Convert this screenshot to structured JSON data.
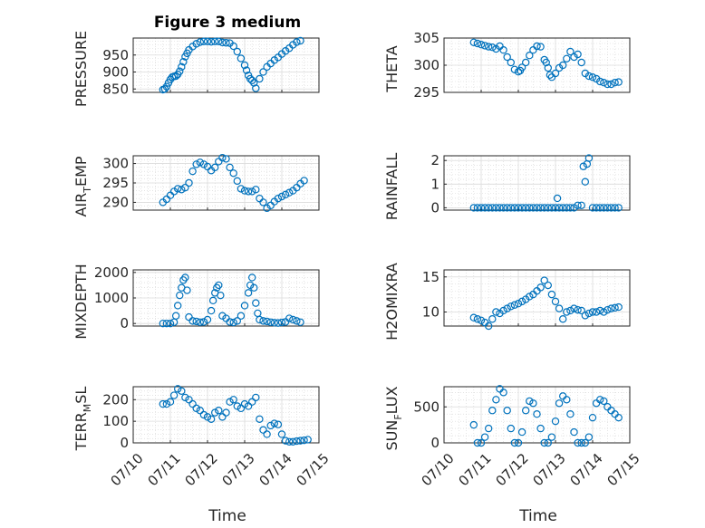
{
  "figure_title": "Figure 3 medium",
  "xlabel": "Time",
  "x_tick_labels": [
    "07/10",
    "07/11",
    "07/12",
    "07/13",
    "07/14",
    "07/15"
  ],
  "marker_color": "#0072BD",
  "chart_data": [
    {
      "type": "scatter",
      "ylabel": "PRESSURE",
      "ylim": [
        840,
        1000
      ],
      "yticks": [
        850,
        900,
        950
      ],
      "x": [
        0.8,
        0.85,
        0.9,
        0.95,
        1.0,
        1.05,
        1.1,
        1.15,
        1.2,
        1.25,
        1.3,
        1.35,
        1.4,
        1.45,
        1.5,
        1.6,
        1.7,
        1.8,
        1.9,
        2.0,
        2.1,
        2.2,
        2.3,
        2.4,
        2.5,
        2.6,
        2.7,
        2.8,
        2.9,
        3.0,
        3.05,
        3.1,
        3.15,
        3.2,
        3.25,
        3.3,
        3.4,
        3.5,
        3.6,
        3.7,
        3.8,
        3.9,
        4.0,
        4.1,
        4.2,
        4.3,
        4.4,
        4.5
      ],
      "y": [
        848,
        850,
        857,
        868,
        878,
        885,
        887,
        888,
        893,
        902,
        915,
        930,
        945,
        955,
        965,
        975,
        983,
        988,
        990,
        990,
        989,
        990,
        990,
        987,
        986,
        985,
        976,
        960,
        940,
        920,
        905,
        890,
        880,
        875,
        868,
        852,
        880,
        900,
        915,
        925,
        935,
        943,
        953,
        962,
        970,
        980,
        988,
        992
      ]
    },
    {
      "type": "scatter",
      "ylabel": "THETA",
      "ylim": [
        295,
        305
      ],
      "yticks": [
        295,
        300,
        305
      ],
      "x": [
        0.8,
        0.9,
        1.0,
        1.1,
        1.2,
        1.3,
        1.4,
        1.5,
        1.6,
        1.7,
        1.8,
        1.9,
        2.0,
        2.05,
        2.1,
        2.2,
        2.3,
        2.4,
        2.5,
        2.6,
        2.7,
        2.75,
        2.8,
        2.85,
        2.9,
        3.0,
        3.1,
        3.2,
        3.3,
        3.4,
        3.5,
        3.6,
        3.7,
        3.8,
        3.9,
        4.0,
        4.1,
        4.2,
        4.3,
        4.4,
        4.5,
        4.6,
        4.7
      ],
      "y": [
        304.2,
        304.0,
        303.8,
        303.6,
        303.4,
        303.3,
        303.0,
        303.5,
        302.8,
        301.5,
        300.5,
        299.2,
        298.8,
        299.0,
        299.6,
        300.5,
        301.8,
        302.8,
        303.5,
        303.4,
        301.0,
        300.5,
        299.5,
        298.2,
        297.8,
        298.5,
        299.5,
        300.0,
        301.2,
        302.5,
        301.5,
        302.0,
        300.5,
        298.5,
        298.0,
        297.8,
        297.5,
        297.0,
        296.8,
        296.5,
        296.5,
        296.8,
        296.9
      ]
    },
    {
      "type": "scatter",
      "ylabel": "AIR_TEMP",
      "ylim": [
        288,
        302
      ],
      "yticks": [
        290,
        295,
        300
      ],
      "x": [
        0.8,
        0.9,
        1.0,
        1.1,
        1.2,
        1.3,
        1.4,
        1.5,
        1.6,
        1.7,
        1.8,
        1.9,
        2.0,
        2.1,
        2.2,
        2.3,
        2.4,
        2.5,
        2.6,
        2.7,
        2.8,
        2.9,
        3.0,
        3.1,
        3.2,
        3.3,
        3.4,
        3.5,
        3.6,
        3.7,
        3.8,
        3.9,
        4.0,
        4.1,
        4.2,
        4.3,
        4.4,
        4.5,
        4.6
      ],
      "y": [
        290.0,
        290.8,
        291.8,
        292.8,
        293.5,
        293.3,
        293.8,
        295.0,
        298.0,
        299.8,
        300.3,
        299.8,
        299.2,
        298.2,
        299.0,
        300.5,
        301.5,
        301.2,
        299.0,
        297.5,
        295.5,
        293.5,
        293.0,
        292.8,
        292.8,
        293.3,
        291.0,
        290.0,
        288.5,
        289.2,
        290.2,
        291.0,
        291.5,
        292.0,
        292.5,
        293.0,
        293.8,
        294.8,
        295.6
      ]
    },
    {
      "type": "scatter",
      "ylabel": "RAINFALL",
      "ylim": [
        -0.1,
        2.2
      ],
      "yticks": [
        0,
        1,
        2
      ],
      "x": [
        0.8,
        0.9,
        1.0,
        1.1,
        1.2,
        1.3,
        1.4,
        1.5,
        1.6,
        1.7,
        1.8,
        1.9,
        2.0,
        2.1,
        2.2,
        2.3,
        2.4,
        2.5,
        2.6,
        2.7,
        2.8,
        2.9,
        3.0,
        3.05,
        3.1,
        3.2,
        3.3,
        3.4,
        3.5,
        3.6,
        3.7,
        3.75,
        3.8,
        3.85,
        3.9,
        4.0,
        4.1,
        4.2,
        4.3,
        4.4,
        4.5,
        4.6,
        4.7
      ],
      "y": [
        0,
        0,
        0,
        0,
        0,
        0,
        0,
        0,
        0,
        0,
        0,
        0,
        0,
        0,
        0,
        0,
        0,
        0,
        0,
        0,
        0,
        0,
        0,
        0.4,
        0,
        0,
        0,
        0,
        0,
        0.1,
        0.1,
        1.75,
        1.1,
        1.85,
        2.1,
        0,
        0,
        0,
        0,
        0,
        0,
        0,
        0
      ]
    },
    {
      "type": "scatter",
      "ylabel": "MIXDEPTH",
      "ylim": [
        -100,
        2100
      ],
      "yticks": [
        0,
        1000,
        2000
      ],
      "x": [
        0.8,
        0.9,
        1.0,
        1.1,
        1.15,
        1.2,
        1.25,
        1.3,
        1.35,
        1.4,
        1.45,
        1.5,
        1.6,
        1.7,
        1.8,
        1.9,
        2.0,
        2.1,
        2.15,
        2.2,
        2.25,
        2.3,
        2.35,
        2.4,
        2.5,
        2.6,
        2.7,
        2.8,
        2.9,
        3.0,
        3.1,
        3.15,
        3.2,
        3.25,
        3.3,
        3.35,
        3.4,
        3.5,
        3.6,
        3.7,
        3.8,
        3.9,
        4.0,
        4.1,
        4.2,
        4.3,
        4.4,
        4.5
      ],
      "y": [
        0,
        0,
        0,
        50,
        300,
        700,
        1100,
        1400,
        1700,
        1800,
        1300,
        250,
        100,
        80,
        50,
        60,
        150,
        500,
        900,
        1200,
        1400,
        1500,
        1100,
        300,
        200,
        60,
        40,
        100,
        300,
        700,
        1200,
        1500,
        1800,
        1400,
        800,
        400,
        150,
        100,
        80,
        50,
        30,
        20,
        40,
        60,
        200,
        150,
        100,
        50
      ]
    },
    {
      "type": "scatter",
      "ylabel": "H2OMIXRA",
      "ylim": [
        8,
        16
      ],
      "yticks": [
        10,
        15
      ],
      "x": [
        0.8,
        0.9,
        1.0,
        1.1,
        1.2,
        1.3,
        1.4,
        1.5,
        1.6,
        1.7,
        1.8,
        1.9,
        2.0,
        2.1,
        2.2,
        2.3,
        2.4,
        2.5,
        2.6,
        2.7,
        2.8,
        2.9,
        3.0,
        3.1,
        3.2,
        3.3,
        3.4,
        3.5,
        3.6,
        3.7,
        3.8,
        3.9,
        4.0,
        4.1,
        4.2,
        4.3,
        4.4,
        4.5,
        4.6,
        4.7
      ],
      "y": [
        9.2,
        9.0,
        8.8,
        8.5,
        8.0,
        9.0,
        10.0,
        9.8,
        10.2,
        10.5,
        10.8,
        11.0,
        11.2,
        11.5,
        11.8,
        12.2,
        12.5,
        13.0,
        13.5,
        14.5,
        13.8,
        12.5,
        11.5,
        10.5,
        9.0,
        10.0,
        10.2,
        10.5,
        10.3,
        10.2,
        9.5,
        9.8,
        10.0,
        10.0,
        10.2,
        10.0,
        10.3,
        10.5,
        10.6,
        10.7
      ]
    },
    {
      "type": "scatter",
      "ylabel": "TERR_MSL",
      "ylim": [
        0,
        260
      ],
      "yticks": [
        0,
        100,
        200
      ],
      "x": [
        0.8,
        0.9,
        1.0,
        1.1,
        1.2,
        1.3,
        1.4,
        1.5,
        1.6,
        1.7,
        1.8,
        1.9,
        2.0,
        2.1,
        2.2,
        2.3,
        2.4,
        2.5,
        2.6,
        2.7,
        2.8,
        2.9,
        3.0,
        3.1,
        3.2,
        3.3,
        3.4,
        3.5,
        3.6,
        3.7,
        3.8,
        3.9,
        4.0,
        4.1,
        4.2,
        4.3,
        4.4,
        4.5,
        4.6,
        4.7
      ],
      "y": [
        180,
        180,
        190,
        220,
        250,
        240,
        210,
        200,
        180,
        160,
        150,
        130,
        120,
        110,
        140,
        150,
        120,
        140,
        190,
        200,
        170,
        160,
        180,
        170,
        190,
        210,
        110,
        60,
        40,
        80,
        90,
        85,
        40,
        10,
        5,
        5,
        8,
        10,
        12,
        15
      ]
    },
    {
      "type": "scatter",
      "ylabel": "SUN_FLUX",
      "ylim": [
        0,
        780
      ],
      "yticks": [
        0,
        500
      ],
      "x": [
        0.8,
        0.9,
        1.0,
        1.1,
        1.2,
        1.3,
        1.4,
        1.5,
        1.6,
        1.7,
        1.8,
        1.9,
        2.0,
        2.1,
        2.2,
        2.3,
        2.4,
        2.5,
        2.6,
        2.7,
        2.8,
        2.9,
        3.0,
        3.1,
        3.2,
        3.3,
        3.4,
        3.5,
        3.6,
        3.7,
        3.8,
        3.9,
        4.0,
        4.1,
        4.2,
        4.3,
        4.4,
        4.5,
        4.6,
        4.7
      ],
      "y": [
        250,
        0,
        0,
        80,
        200,
        450,
        600,
        750,
        700,
        450,
        200,
        0,
        0,
        150,
        450,
        580,
        550,
        400,
        200,
        0,
        0,
        80,
        300,
        550,
        650,
        600,
        400,
        150,
        0,
        0,
        0,
        80,
        350,
        550,
        600,
        580,
        500,
        450,
        400,
        350
      ]
    }
  ]
}
